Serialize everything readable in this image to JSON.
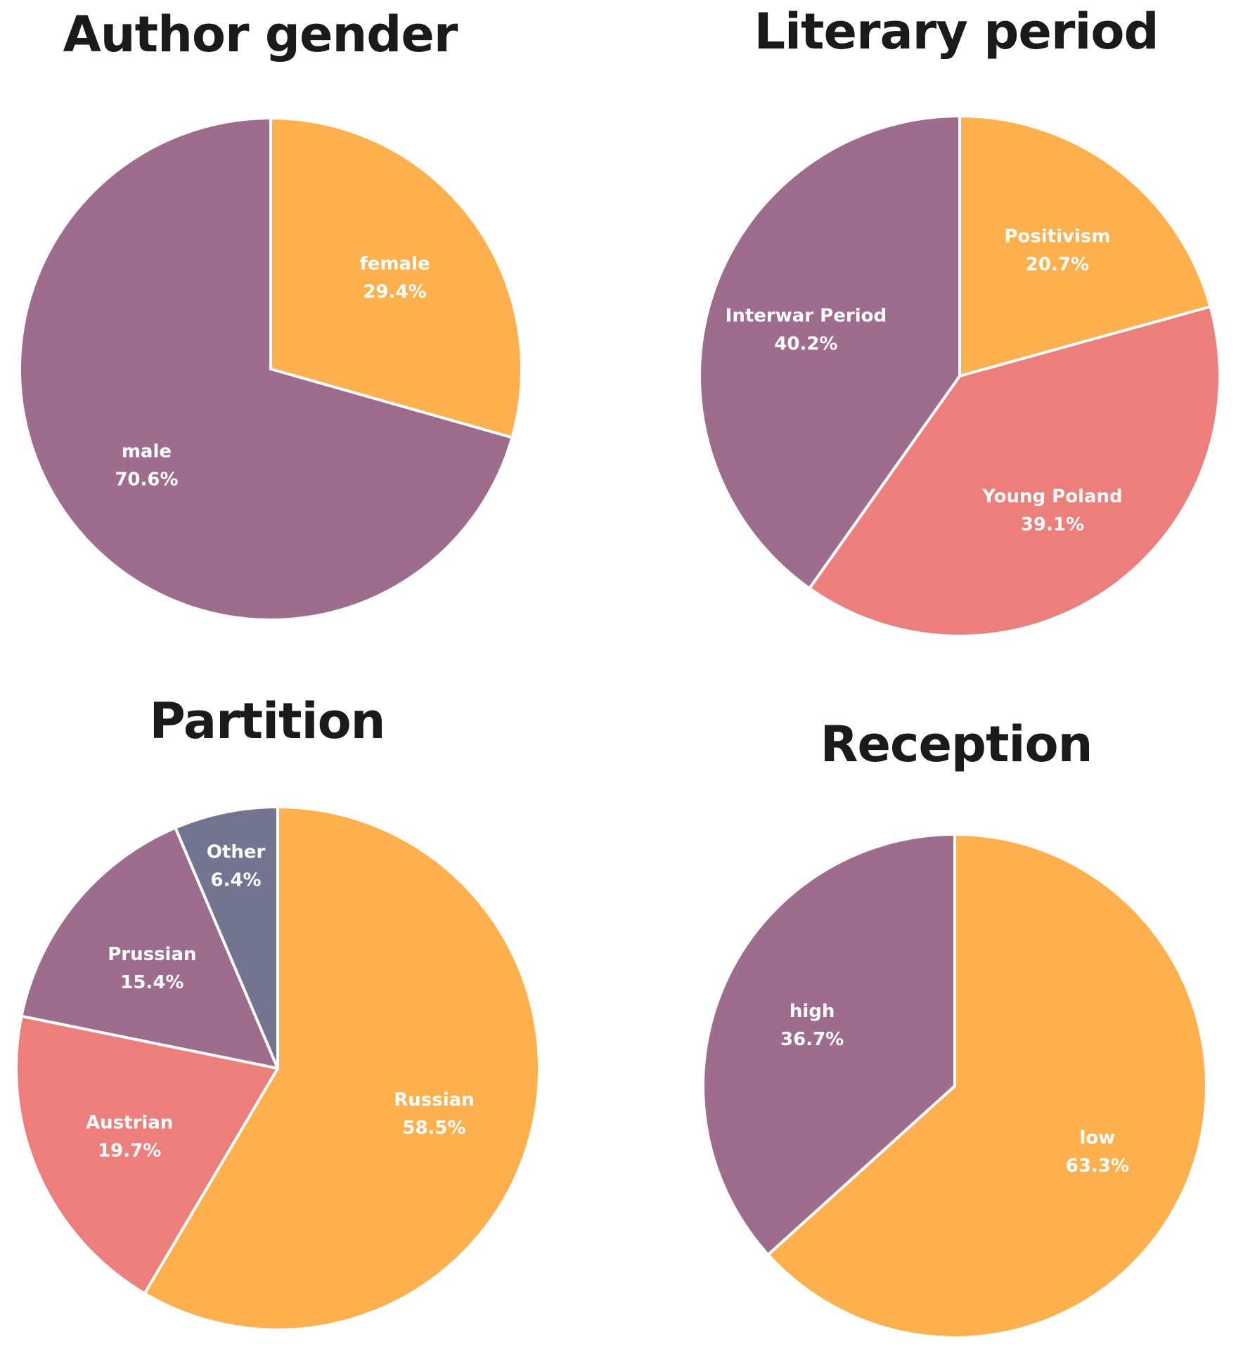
{
  "colors": {
    "orange": "#FDB04B",
    "purple": "#9E6C8C",
    "salmon": "#EC7E7B",
    "slate": "#737590",
    "border": "#FFFFFF"
  },
  "chart_data": [
    {
      "type": "pie",
      "title": "Author gender",
      "slices": [
        {
          "label": "female",
          "value": 29.4,
          "text": "29.4%",
          "color": "#FDB04B"
        },
        {
          "label": "male",
          "value": 70.6,
          "text": "70.6%",
          "color": "#9E6C8C"
        }
      ]
    },
    {
      "type": "pie",
      "title": "Literary period",
      "slices": [
        {
          "label": "Positivism",
          "value": 20.7,
          "text": "20.7%",
          "color": "#FDB04B"
        },
        {
          "label": "Young Poland",
          "value": 39.1,
          "text": "39.1%",
          "color": "#EC7E7B"
        },
        {
          "label": "Interwar Period",
          "value": 40.2,
          "text": "40.2%",
          "color": "#9E6C8C"
        }
      ]
    },
    {
      "type": "pie",
      "title": "Partition",
      "slices": [
        {
          "label": "Russian",
          "value": 58.5,
          "text": "58.5%",
          "color": "#FDB04B"
        },
        {
          "label": "Austrian",
          "value": 19.7,
          "text": "19.7%",
          "color": "#EC7E7B"
        },
        {
          "label": "Prussian",
          "value": 15.4,
          "text": "15.4%",
          "color": "#9E6C8C"
        },
        {
          "label": "Other",
          "value": 6.4,
          "text": "6.4%",
          "color": "#737590"
        }
      ]
    },
    {
      "type": "pie",
      "title": "Reception",
      "slices": [
        {
          "label": "low",
          "value": 63.3,
          "text": "63.3%",
          "color": "#FDB04B"
        },
        {
          "label": "high",
          "value": 36.7,
          "text": "36.7%",
          "color": "#9E6C8C"
        }
      ]
    }
  ]
}
